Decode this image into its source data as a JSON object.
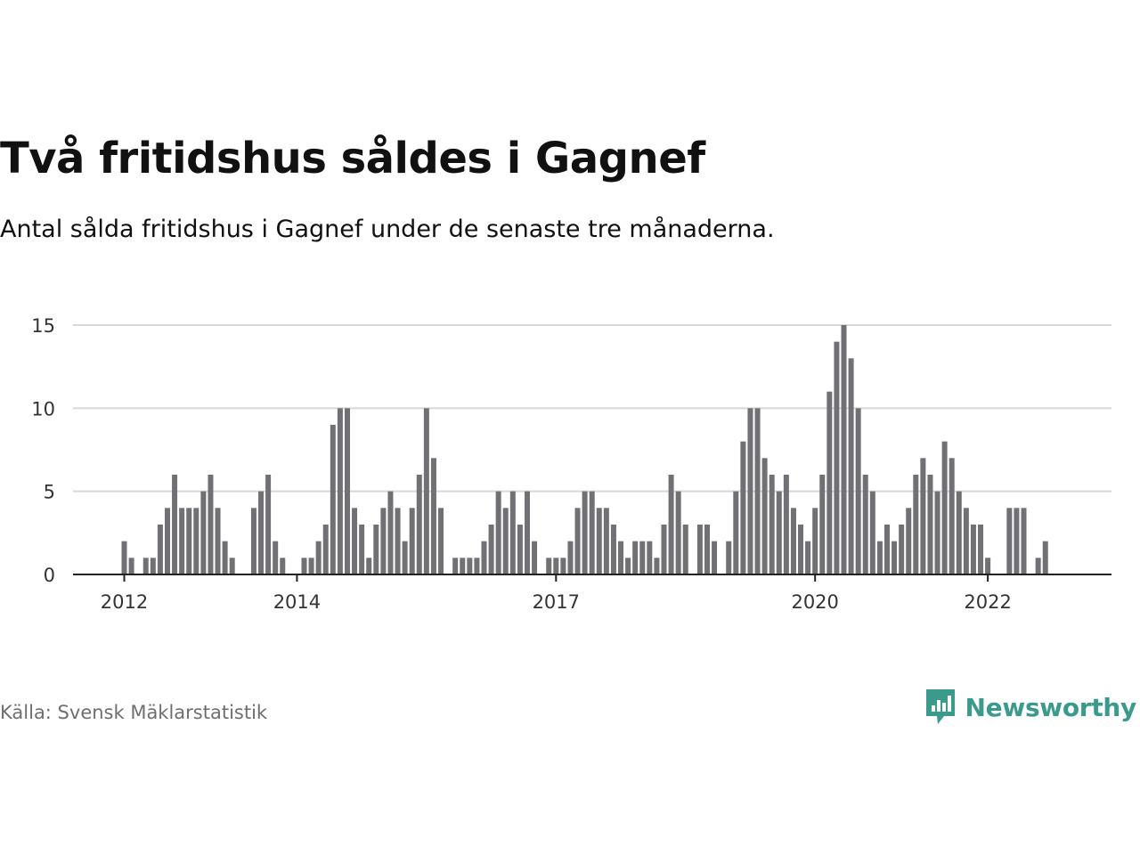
{
  "header": {
    "title": "Två fritidshus såldes i Gagnef",
    "subtitle": "Antal sålda fritidshus i Gagnef under de senaste tre månaderna."
  },
  "footer": {
    "source": "Källa: Svensk Mäklarstatistik",
    "brand": "Newsworthy"
  },
  "colors": {
    "bar": "#717074",
    "highlight": "#1a9e95",
    "grid": "#d8d8d8",
    "axis": "#222222",
    "brand": "#3a9a8c"
  },
  "icons": {
    "brand_logo": "bar-chart-speech-bubble-icon"
  },
  "chart_data": {
    "type": "bar",
    "title": "Två fritidshus såldes i Gagnef",
    "subtitle": "Antal sålda fritidshus i Gagnef under de senaste tre månaderna.",
    "xlabel": "",
    "ylabel": "",
    "ylim": [
      0,
      15
    ],
    "yticks": [
      0,
      5,
      10,
      15
    ],
    "xticks": [
      {
        "label": "2012",
        "index": 0
      },
      {
        "label": "2014",
        "index": 24
      },
      {
        "label": "2017",
        "index": 60
      },
      {
        "label": "2020",
        "index": 96
      },
      {
        "label": "2022",
        "index": 120
      }
    ],
    "grid": true,
    "legend": "none",
    "highlight": {
      "index": 131,
      "label": "2"
    },
    "values": [
      2,
      1,
      0,
      1,
      1,
      3,
      4,
      6,
      4,
      4,
      4,
      5,
      6,
      4,
      2,
      1,
      0,
      0,
      4,
      5,
      6,
      2,
      1,
      0,
      0,
      1,
      1,
      2,
      3,
      9,
      10,
      10,
      4,
      3,
      1,
      3,
      4,
      5,
      4,
      2,
      4,
      6,
      10,
      7,
      4,
      0,
      1,
      1,
      1,
      1,
      2,
      3,
      5,
      4,
      5,
      3,
      5,
      2,
      0,
      1,
      1,
      1,
      2,
      4,
      5,
      5,
      4,
      4,
      3,
      2,
      1,
      2,
      2,
      2,
      1,
      3,
      6,
      5,
      3,
      0,
      3,
      3,
      2,
      0,
      2,
      5,
      8,
      10,
      10,
      7,
      6,
      5,
      6,
      4,
      3,
      2,
      4,
      6,
      11,
      14,
      15,
      13,
      10,
      6,
      5,
      2,
      3,
      2,
      3,
      4,
      6,
      7,
      6,
      5,
      8,
      7,
      5,
      4,
      3,
      3,
      1,
      0,
      0,
      4,
      4,
      4,
      0,
      1,
      2
    ]
  }
}
